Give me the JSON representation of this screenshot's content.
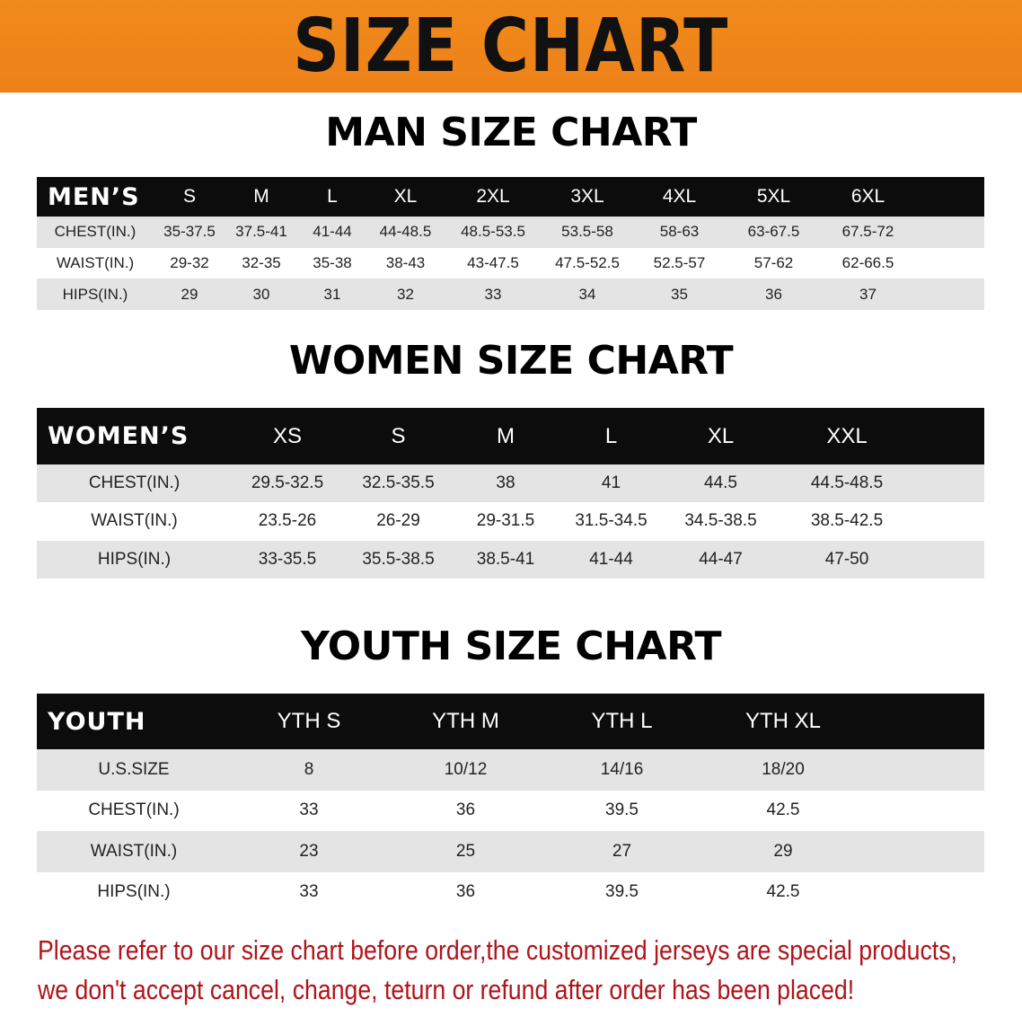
{
  "banner_title": "SIZE CHART",
  "men": {
    "title": "MAN SIZE CHART",
    "header": [
      "MEN’S",
      "S",
      "M",
      "L",
      "XL",
      "2XL",
      "3XL",
      "4XL",
      "5XL",
      "6XL"
    ],
    "rows": [
      [
        "CHEST(IN.)",
        "35-37.5",
        "37.5-41",
        "41-44",
        "44-48.5",
        "48.5-53.5",
        "53.5-58",
        "58-63",
        "63-67.5",
        "67.5-72"
      ],
      [
        "WAIST(IN.)",
        "29-32",
        "32-35",
        "35-38",
        "38-43",
        "43-47.5",
        "47.5-52.5",
        "52.5-57",
        "57-62",
        "62-66.5"
      ],
      [
        "HIPS(IN.)",
        "29",
        "30",
        "31",
        "32",
        "33",
        "34",
        "35",
        "36",
        "37"
      ]
    ]
  },
  "women": {
    "title": "WOMEN SIZE CHART",
    "header": [
      "WOMEN’S",
      "XS",
      "S",
      "M",
      "L",
      "XL",
      "XXL"
    ],
    "rows": [
      [
        "CHEST(IN.)",
        "29.5-32.5",
        "32.5-35.5",
        "38",
        "41",
        "44.5",
        "44.5-48.5"
      ],
      [
        "WAIST(IN.)",
        "23.5-26",
        "26-29",
        "29-31.5",
        "31.5-34.5",
        "34.5-38.5",
        "38.5-42.5"
      ],
      [
        "HIPS(IN.)",
        "33-35.5",
        "35.5-38.5",
        "38.5-41",
        "41-44",
        "44-47",
        "47-50"
      ]
    ]
  },
  "youth": {
    "title": "YOUTH SIZE CHART",
    "header": [
      "YOUTH",
      "YTH S",
      "YTH M",
      "YTH L",
      "YTH XL"
    ],
    "rows": [
      [
        "U.S.SIZE",
        "8",
        "10/12",
        "14/16",
        "18/20"
      ],
      [
        "CHEST(IN.)",
        "33",
        "36",
        "39.5",
        "42.5"
      ],
      [
        "WAIST(IN.)",
        "23",
        "25",
        "27",
        "29"
      ],
      [
        "HIPS(IN.)",
        "33",
        "36",
        "39.5",
        "42.5"
      ]
    ]
  },
  "notice": [
    "Please refer to our size chart before order,the customized jerseys are special products,",
    "we don't accept cancel, change, teturn or refund after order has been placed!"
  ],
  "colors": {
    "banner": "#ef861a",
    "header_row": "#0c0c0c",
    "shaded_row": "#e4e4e4",
    "notice": "#b0141a"
  }
}
